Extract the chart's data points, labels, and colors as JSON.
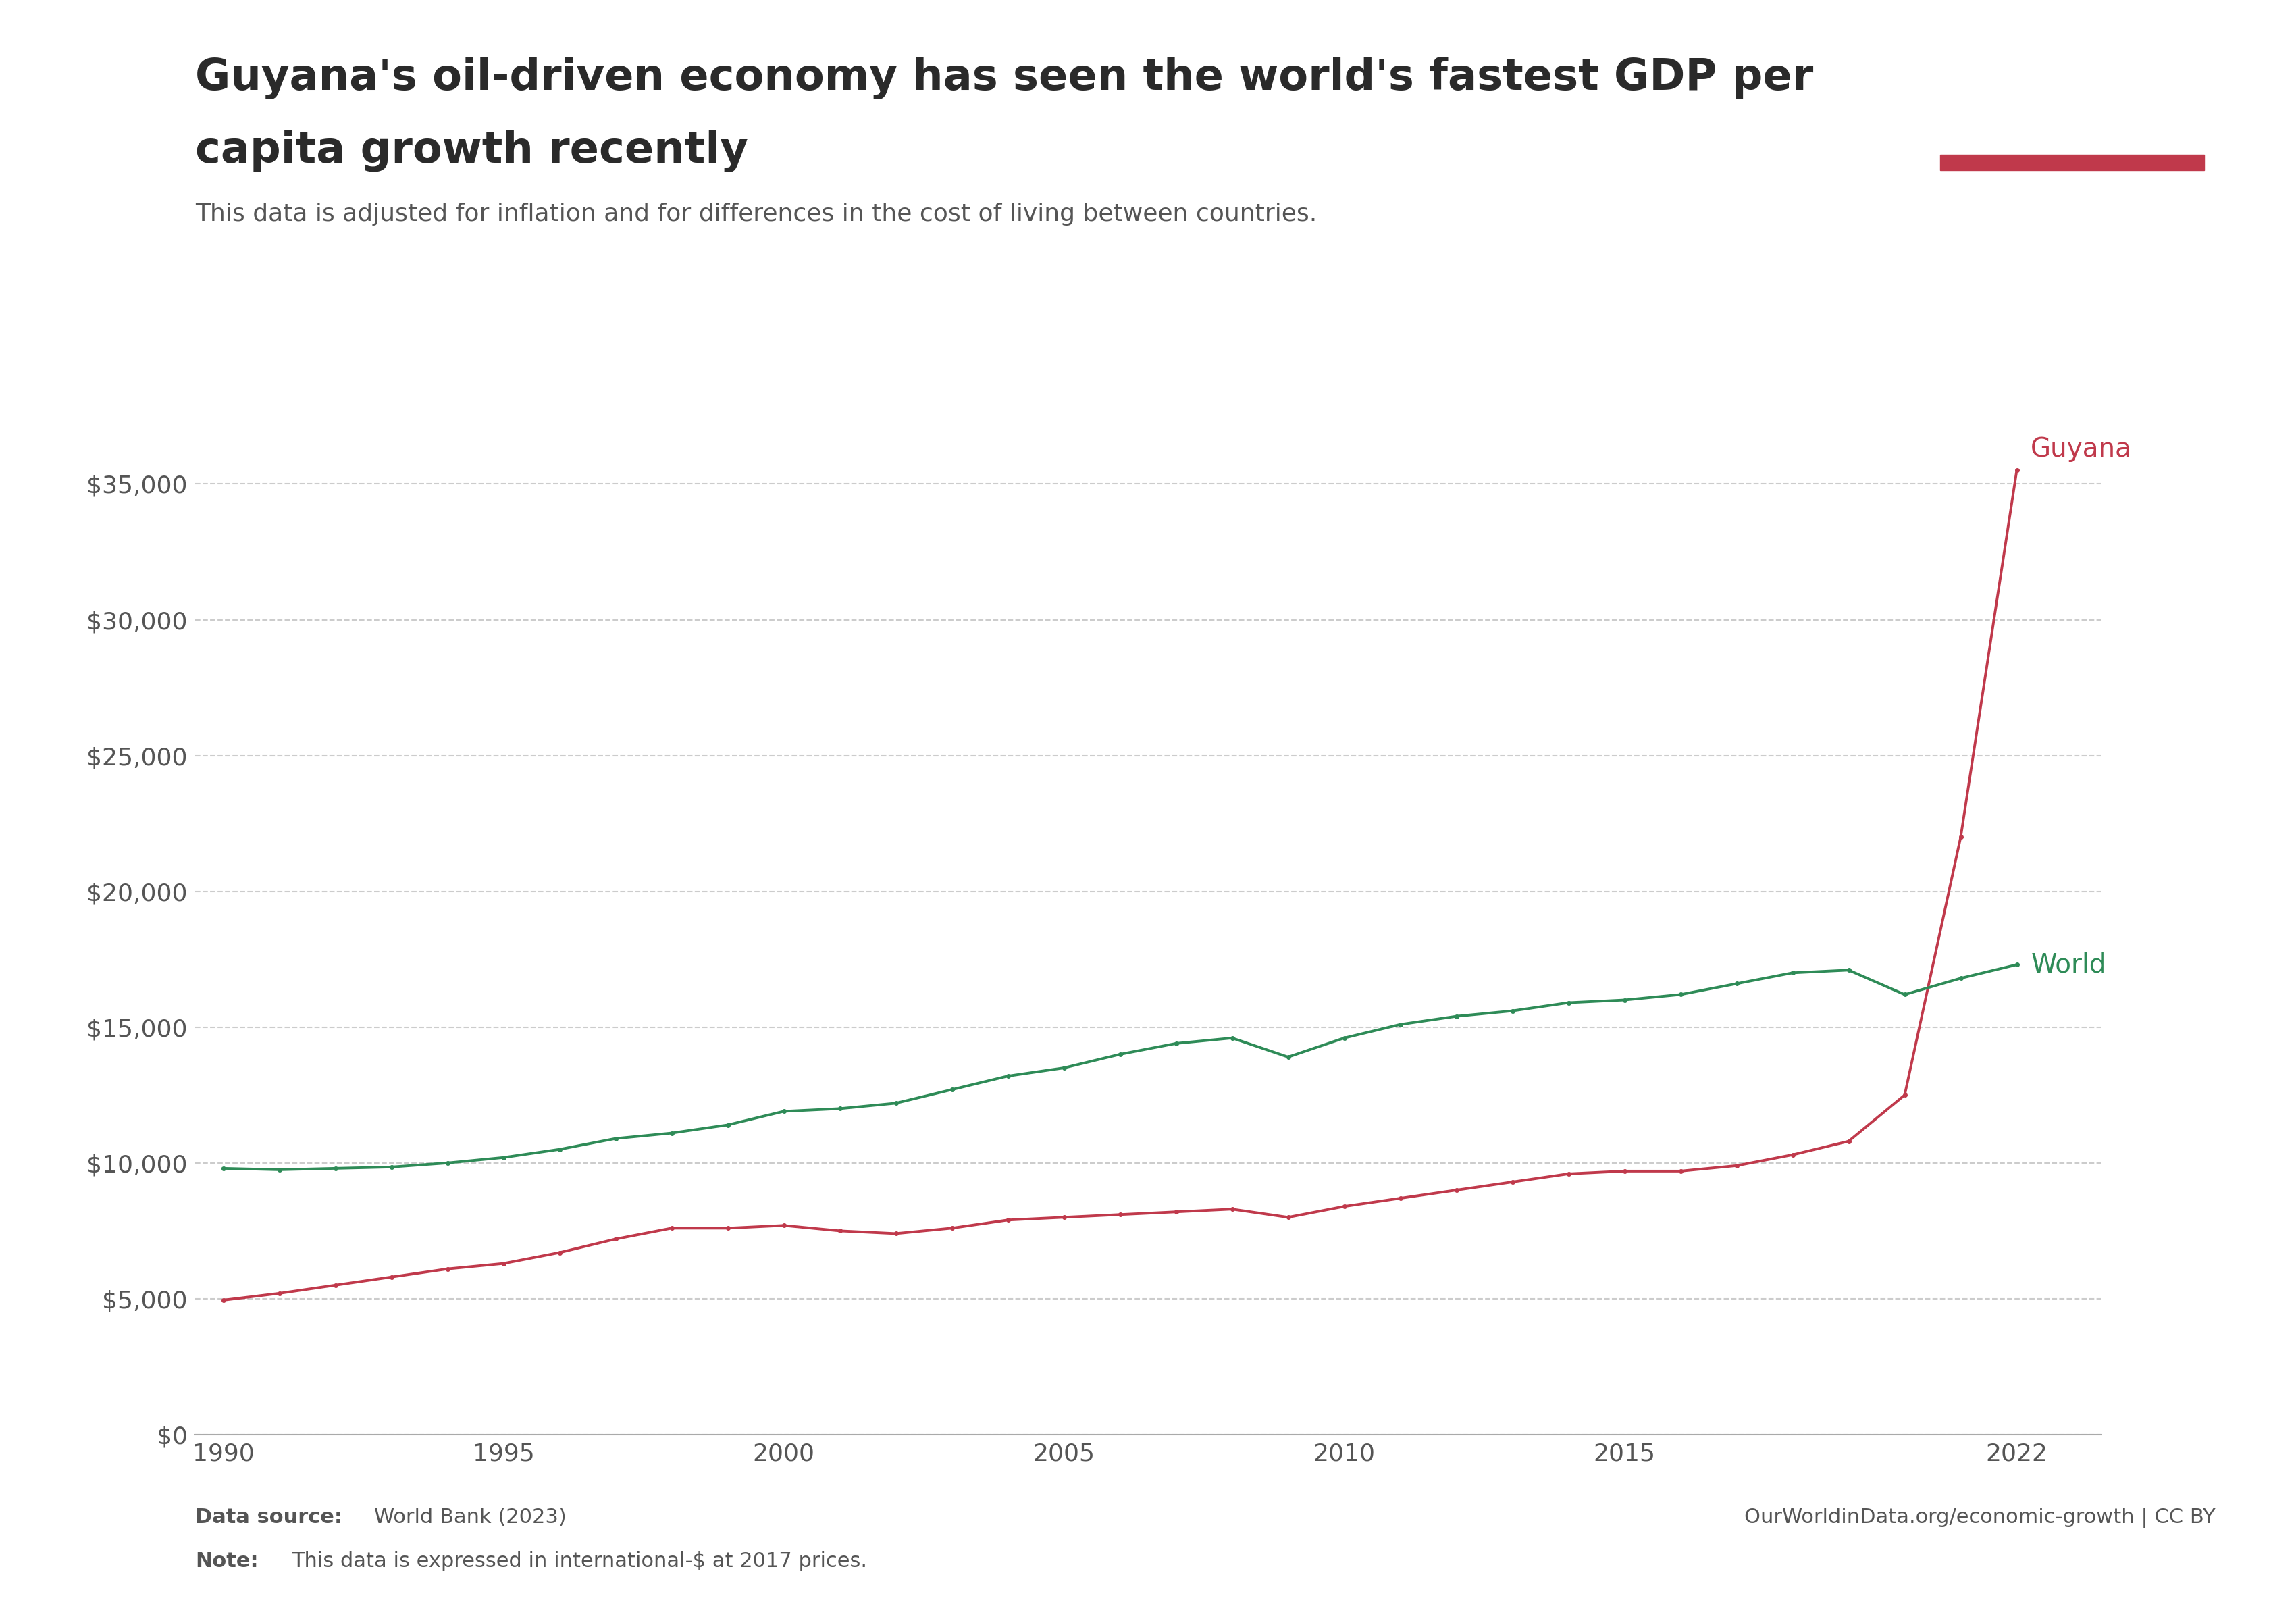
{
  "title_line1": "Guyana's oil-driven economy has seen the world's fastest GDP per",
  "title_line2": "capita growth recently",
  "subtitle": "This data is adjusted for inflation and for differences in the cost of living between countries.",
  "footnote_source_bold": "Data source:",
  "footnote_source_rest": " World Bank (2023)",
  "footnote_note_bold": "Note:",
  "footnote_note_rest": " This data is expressed in international-$ at 2017 prices.",
  "footnote_right": "OurWorldinData.org/economic-growth | CC BY",
  "guyana_years": [
    1990,
    1991,
    1992,
    1993,
    1994,
    1995,
    1996,
    1997,
    1998,
    1999,
    2000,
    2001,
    2002,
    2003,
    2004,
    2005,
    2006,
    2007,
    2008,
    2009,
    2010,
    2011,
    2012,
    2013,
    2014,
    2015,
    2016,
    2017,
    2018,
    2019,
    2020,
    2021,
    2022
  ],
  "guyana_values": [
    4950,
    5200,
    5500,
    5800,
    6100,
    6300,
    6700,
    7200,
    7600,
    7600,
    7700,
    7500,
    7400,
    7600,
    7900,
    8000,
    8100,
    8200,
    8300,
    8000,
    8400,
    8700,
    9000,
    9300,
    9600,
    9700,
    9700,
    9900,
    10300,
    10800,
    12500,
    22000,
    35500
  ],
  "world_years": [
    1990,
    1991,
    1992,
    1993,
    1994,
    1995,
    1996,
    1997,
    1998,
    1999,
    2000,
    2001,
    2002,
    2003,
    2004,
    2005,
    2006,
    2007,
    2008,
    2009,
    2010,
    2011,
    2012,
    2013,
    2014,
    2015,
    2016,
    2017,
    2018,
    2019,
    2020,
    2021,
    2022
  ],
  "world_values": [
    9800,
    9750,
    9800,
    9850,
    10000,
    10200,
    10500,
    10900,
    11100,
    11400,
    11900,
    12000,
    12200,
    12700,
    13200,
    13500,
    14000,
    14400,
    14600,
    13900,
    14600,
    15100,
    15400,
    15600,
    15900,
    16000,
    16200,
    16600,
    17000,
    17100,
    16200,
    16800,
    17300
  ],
  "guyana_color": "#C0394B",
  "world_color": "#2E8B57",
  "background_color": "#FFFFFF",
  "ylim": [
    0,
    37000
  ],
  "yticks": [
    0,
    5000,
    10000,
    15000,
    20000,
    25000,
    30000,
    35000
  ],
  "xlim": [
    1989.5,
    2023.5
  ],
  "xticks": [
    1990,
    1995,
    2000,
    2005,
    2010,
    2015,
    2022
  ],
  "owid_box_color": "#1a2e4a",
  "owid_box_red": "#C0394B",
  "title_color": "#2a2a2a",
  "subtitle_color": "#555555",
  "footnote_color": "#555555",
  "grid_color": "#cccccc",
  "marker_size": 4,
  "line_width": 2.8,
  "title_fontsize": 46,
  "subtitle_fontsize": 26,
  "tick_fontsize": 26,
  "label_fontsize": 28,
  "footnote_fontsize": 22
}
